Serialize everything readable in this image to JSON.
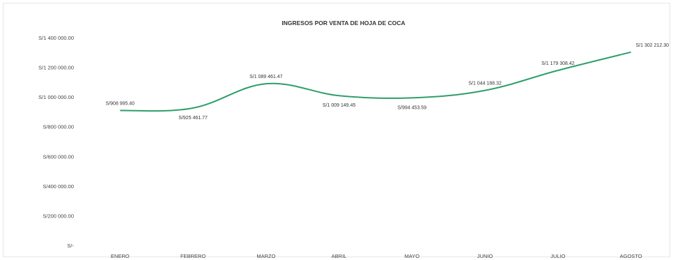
{
  "chart_data": {
    "type": "line",
    "title": "INGRESOS POR VENTA DE HOJA DE COCA",
    "xlabel": "",
    "ylabel": "",
    "categories": [
      "ENERO",
      "FEBRERO",
      "MARZO",
      "ABRIL",
      "MAYO",
      "JUNIO",
      "JULIO",
      "AGOSTO"
    ],
    "series": [
      {
        "values": [
          908995.4,
          925461.77,
          1089461.47,
          1009149.45,
          994453.59,
          1044188.32,
          1179308.42,
          1302212.3
        ],
        "data_labels": [
          "S/908 995.40",
          "S/925 461.77",
          "S/1 089 461.47",
          "S/1 009 149.45",
          "S/994 453.59",
          "S/1 044 188.32",
          "S/1 179 308.42",
          "S/1 302 212.30"
        ],
        "color": "#2e9e6a"
      }
    ],
    "ylim": [
      0,
      1400000
    ],
    "yticks": [
      0,
      200000,
      400000,
      600000,
      800000,
      1000000,
      1200000,
      1400000
    ],
    "ytick_labels": [
      "S/-",
      "S/200 000.00",
      "S/400 000.00",
      "S/600 000.00",
      "S/800 000.00",
      "S/1 000 000.00",
      "S/1 200 000.00",
      "S/1 400 000.00"
    ],
    "grid": false,
    "legend": "none"
  }
}
